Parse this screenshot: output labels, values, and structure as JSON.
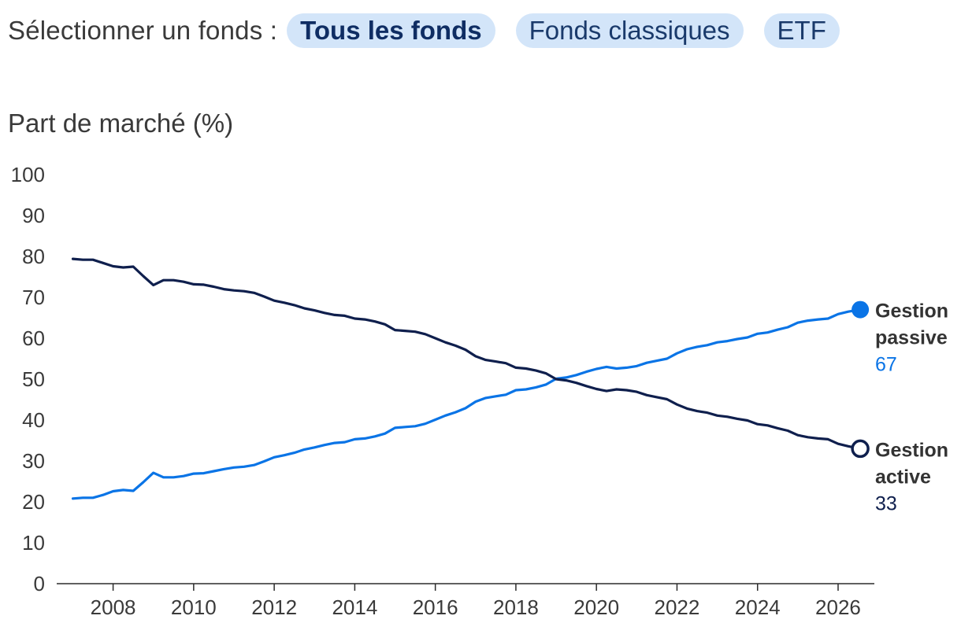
{
  "filter": {
    "label": "Sélectionner un fonds :",
    "options": [
      "Tous les fonds",
      "Fonds classiques",
      "ETF"
    ],
    "selected": "Tous les fonds"
  },
  "colors": {
    "passive": "#0a74e6",
    "active": "#0f1f4d",
    "pill_bg": "#d3e5f9",
    "axis": "#2b2b2b"
  },
  "chart_data": {
    "type": "line",
    "ylabel": "Part de marché (%)",
    "xlabel": "",
    "ylim": [
      0,
      100
    ],
    "xlim": [
      2006.6,
      2026.9
    ],
    "yticks": [
      0,
      10,
      20,
      30,
      40,
      50,
      60,
      70,
      80,
      90,
      100
    ],
    "xticks": [
      2008,
      2010,
      2012,
      2014,
      2016,
      2018,
      2020,
      2022,
      2024,
      2026
    ],
    "grid": false,
    "series": [
      {
        "name": "Gestion passive",
        "label_lines": [
          "Gestion",
          "passive"
        ],
        "end_value": "67",
        "color": "#0a74e6",
        "marker": "filled",
        "points": [
          [
            2007.0,
            20.8
          ],
          [
            2007.25,
            21.0
          ],
          [
            2007.5,
            21.0
          ],
          [
            2007.75,
            21.7
          ],
          [
            2008.0,
            22.6
          ],
          [
            2008.25,
            22.9
          ],
          [
            2008.5,
            22.7
          ],
          [
            2008.75,
            24.8
          ],
          [
            2009.0,
            27.1
          ],
          [
            2009.25,
            26.0
          ],
          [
            2009.5,
            26.0
          ],
          [
            2009.75,
            26.3
          ],
          [
            2010.0,
            26.9
          ],
          [
            2010.25,
            27.0
          ],
          [
            2010.5,
            27.5
          ],
          [
            2010.75,
            28.0
          ],
          [
            2011.0,
            28.4
          ],
          [
            2011.25,
            28.6
          ],
          [
            2011.5,
            29.0
          ],
          [
            2011.75,
            29.9
          ],
          [
            2012.0,
            30.9
          ],
          [
            2012.25,
            31.4
          ],
          [
            2012.5,
            32.0
          ],
          [
            2012.75,
            32.8
          ],
          [
            2013.0,
            33.3
          ],
          [
            2013.25,
            33.9
          ],
          [
            2013.5,
            34.4
          ],
          [
            2013.75,
            34.6
          ],
          [
            2014.0,
            35.3
          ],
          [
            2014.25,
            35.5
          ],
          [
            2014.5,
            36.0
          ],
          [
            2014.75,
            36.7
          ],
          [
            2015.0,
            38.1
          ],
          [
            2015.25,
            38.3
          ],
          [
            2015.5,
            38.5
          ],
          [
            2015.75,
            39.1
          ],
          [
            2016.0,
            40.1
          ],
          [
            2016.25,
            41.1
          ],
          [
            2016.5,
            41.9
          ],
          [
            2016.75,
            42.9
          ],
          [
            2017.0,
            44.5
          ],
          [
            2017.25,
            45.4
          ],
          [
            2017.5,
            45.8
          ],
          [
            2017.75,
            46.2
          ],
          [
            2018.0,
            47.3
          ],
          [
            2018.25,
            47.5
          ],
          [
            2018.5,
            48.0
          ],
          [
            2018.75,
            48.7
          ],
          [
            2019.0,
            50.1
          ],
          [
            2019.25,
            50.4
          ],
          [
            2019.5,
            51.0
          ],
          [
            2019.75,
            51.8
          ],
          [
            2020.0,
            52.5
          ],
          [
            2020.25,
            53.0
          ],
          [
            2020.5,
            52.6
          ],
          [
            2020.75,
            52.8
          ],
          [
            2021.0,
            53.2
          ],
          [
            2021.25,
            54.0
          ],
          [
            2021.5,
            54.5
          ],
          [
            2021.75,
            55.0
          ],
          [
            2022.0,
            56.3
          ],
          [
            2022.25,
            57.3
          ],
          [
            2022.5,
            57.9
          ],
          [
            2022.75,
            58.3
          ],
          [
            2023.0,
            59.0
          ],
          [
            2023.25,
            59.3
          ],
          [
            2023.5,
            59.8
          ],
          [
            2023.75,
            60.2
          ],
          [
            2024.0,
            61.1
          ],
          [
            2024.25,
            61.4
          ],
          [
            2024.5,
            62.1
          ],
          [
            2024.75,
            62.7
          ],
          [
            2025.0,
            63.8
          ],
          [
            2025.25,
            64.3
          ],
          [
            2025.5,
            64.6
          ],
          [
            2025.75,
            64.8
          ],
          [
            2026.0,
            65.9
          ],
          [
            2026.25,
            66.5
          ],
          [
            2026.55,
            67.0
          ]
        ]
      },
      {
        "name": "Gestion active",
        "label_lines": [
          "Gestion",
          "active"
        ],
        "end_value": "33",
        "color": "#0f1f4d",
        "marker": "hollow",
        "points": [
          [
            2007.0,
            79.4
          ],
          [
            2007.25,
            79.2
          ],
          [
            2007.5,
            79.2
          ],
          [
            2007.75,
            78.4
          ],
          [
            2008.0,
            77.6
          ],
          [
            2008.25,
            77.3
          ],
          [
            2008.5,
            77.5
          ],
          [
            2008.75,
            75.2
          ],
          [
            2009.0,
            73.0
          ],
          [
            2009.25,
            74.2
          ],
          [
            2009.5,
            74.2
          ],
          [
            2009.75,
            73.8
          ],
          [
            2010.0,
            73.2
          ],
          [
            2010.25,
            73.1
          ],
          [
            2010.5,
            72.6
          ],
          [
            2010.75,
            72.0
          ],
          [
            2011.0,
            71.7
          ],
          [
            2011.25,
            71.5
          ],
          [
            2011.5,
            71.1
          ],
          [
            2011.75,
            70.2
          ],
          [
            2012.0,
            69.2
          ],
          [
            2012.25,
            68.7
          ],
          [
            2012.5,
            68.1
          ],
          [
            2012.75,
            67.3
          ],
          [
            2013.0,
            66.8
          ],
          [
            2013.25,
            66.2
          ],
          [
            2013.5,
            65.7
          ],
          [
            2013.75,
            65.5
          ],
          [
            2014.0,
            64.8
          ],
          [
            2014.25,
            64.6
          ],
          [
            2014.5,
            64.1
          ],
          [
            2014.75,
            63.4
          ],
          [
            2015.0,
            62.0
          ],
          [
            2015.25,
            61.8
          ],
          [
            2015.5,
            61.6
          ],
          [
            2015.75,
            61.0
          ],
          [
            2016.0,
            60.0
          ],
          [
            2016.25,
            59.0
          ],
          [
            2016.5,
            58.2
          ],
          [
            2016.75,
            57.2
          ],
          [
            2017.0,
            55.6
          ],
          [
            2017.25,
            54.7
          ],
          [
            2017.5,
            54.3
          ],
          [
            2017.75,
            53.9
          ],
          [
            2018.0,
            52.8
          ],
          [
            2018.25,
            52.6
          ],
          [
            2018.5,
            52.1
          ],
          [
            2018.75,
            51.4
          ],
          [
            2019.0,
            50.0
          ],
          [
            2019.25,
            49.7
          ],
          [
            2019.5,
            49.1
          ],
          [
            2019.75,
            48.3
          ],
          [
            2020.0,
            47.6
          ],
          [
            2020.25,
            47.1
          ],
          [
            2020.5,
            47.5
          ],
          [
            2020.75,
            47.3
          ],
          [
            2021.0,
            46.9
          ],
          [
            2021.25,
            46.1
          ],
          [
            2021.5,
            45.6
          ],
          [
            2021.75,
            45.1
          ],
          [
            2022.0,
            43.8
          ],
          [
            2022.25,
            42.8
          ],
          [
            2022.5,
            42.2
          ],
          [
            2022.75,
            41.8
          ],
          [
            2023.0,
            41.1
          ],
          [
            2023.25,
            40.8
          ],
          [
            2023.5,
            40.3
          ],
          [
            2023.75,
            39.9
          ],
          [
            2024.0,
            39.0
          ],
          [
            2024.25,
            38.7
          ],
          [
            2024.5,
            38.0
          ],
          [
            2024.75,
            37.4
          ],
          [
            2025.0,
            36.3
          ],
          [
            2025.25,
            35.8
          ],
          [
            2025.5,
            35.5
          ],
          [
            2025.75,
            35.3
          ],
          [
            2026.0,
            34.2
          ],
          [
            2026.25,
            33.6
          ],
          [
            2026.55,
            33.0
          ]
        ]
      }
    ]
  }
}
